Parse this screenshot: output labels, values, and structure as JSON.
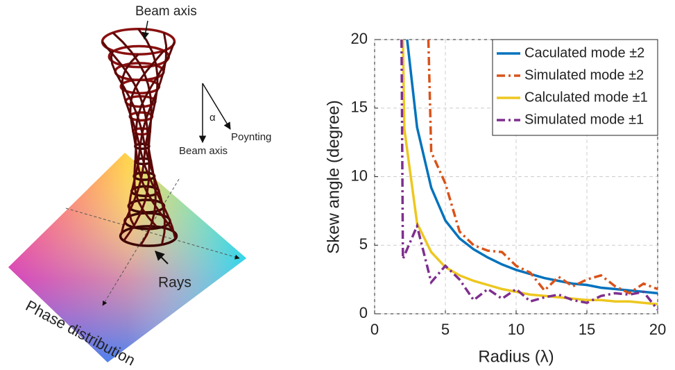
{
  "illustration": {
    "top_label": "Beam axis",
    "angle_label": "α",
    "poynting_label": "Poynting",
    "axis_label": "Beam axis",
    "rays_label": "Rays",
    "plane_label": "Phase distribution"
  },
  "chart_data": {
    "type": "line",
    "xlabel": "Radius (λ)",
    "ylabel": "Skew angle (degree)",
    "xlim": [
      0,
      20
    ],
    "ylim": [
      0,
      20
    ],
    "xticks": [
      0,
      5,
      10,
      15,
      20
    ],
    "yticks": [
      0,
      5,
      10,
      15,
      20
    ],
    "grid": true,
    "legend": "upper-right",
    "series": [
      {
        "name": "Caculated mode ±2",
        "color": "#0072bd",
        "style": "solid",
        "x": [
          2.3,
          3,
          4,
          5,
          6,
          7,
          8,
          9,
          10,
          11,
          12,
          13,
          14,
          15,
          16,
          17,
          18,
          19,
          20
        ],
        "values": [
          20,
          13.6,
          9.2,
          6.8,
          5.5,
          4.7,
          4.1,
          3.6,
          3.2,
          2.9,
          2.6,
          2.4,
          2.2,
          2.1,
          1.9,
          1.8,
          1.7,
          1.6,
          1.5
        ]
      },
      {
        "name": "Simulated mode ±2",
        "color": "#d95319",
        "style": "dashdot",
        "x": [
          3.8,
          4,
          5,
          6,
          7,
          8,
          9,
          10,
          11,
          12,
          13,
          14,
          15,
          16,
          17,
          18,
          19,
          20
        ],
        "values": [
          20,
          11.8,
          9.5,
          6,
          5,
          4.6,
          4.5,
          3.5,
          3,
          1.7,
          2.7,
          2,
          2.5,
          2.8,
          2,
          1.5,
          2.2,
          1.8
        ]
      },
      {
        "name": "Calculated mode ±1",
        "color": "#edc71f",
        "style": "solid",
        "x": [
          2,
          2.1,
          3,
          4,
          5,
          6,
          7,
          8,
          9,
          10,
          11,
          12,
          13,
          14,
          15,
          16,
          17,
          18,
          19,
          20
        ],
        "values": [
          20,
          13.5,
          6.6,
          4.5,
          3.4,
          2.8,
          2.4,
          2.1,
          1.8,
          1.6,
          1.4,
          1.3,
          1.2,
          1.1,
          1.0,
          1.0,
          0.9,
          0.9,
          0.8,
          0.7
        ]
      },
      {
        "name": "Simulated mode ±1",
        "color": "#7e2f8e",
        "style": "dashdot",
        "x": [
          1.9,
          2,
          3,
          4,
          5,
          6,
          7,
          8,
          9,
          10,
          11,
          12,
          13,
          14,
          15,
          16,
          17,
          18,
          19,
          20
        ],
        "values": [
          20,
          4,
          6.4,
          2.3,
          3.5,
          2.5,
          1,
          1.8,
          1.1,
          1.8,
          0.9,
          1.2,
          1.4,
          1,
          0.8,
          1.3,
          1.5,
          1.4,
          1.6,
          0.3
        ]
      }
    ]
  }
}
